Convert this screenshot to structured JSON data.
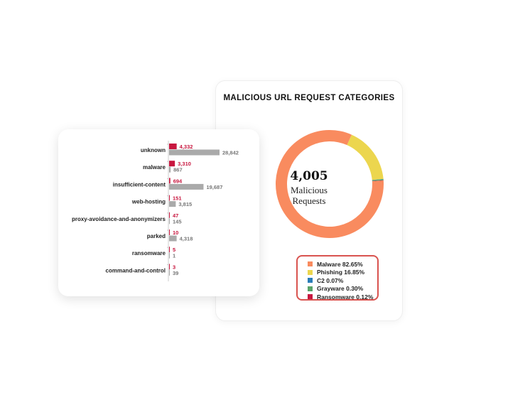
{
  "chart_data": [
    {
      "type": "bar",
      "orientation": "horizontal",
      "categories": [
        "unknown",
        "malware",
        "insufficient-content",
        "web-hosting",
        "proxy-avoidance-and-anonymizers",
        "parked",
        "ransomware",
        "command-and-control"
      ],
      "series": [
        {
          "color": "#c8173f",
          "values": [
            4332,
            3310,
            694,
            151,
            47,
            10,
            5,
            3
          ],
          "labels": [
            "4,332",
            "3,310",
            "694",
            "151",
            "47",
            "10",
            "5",
            "3"
          ]
        },
        {
          "color": "#aaaaaa",
          "values": [
            28842,
            867,
            19687,
            3815,
            145,
            4318,
            1,
            39
          ],
          "labels": [
            "28,842",
            "867",
            "19,687",
            "3,815",
            "145",
            "4,318",
            "1",
            "39"
          ]
        }
      ]
    },
    {
      "type": "pie",
      "donut": true,
      "title": "MALICIOUS URL REQUEST CATEGORIES",
      "center_value": "4,005",
      "center_label": "Malicious\nRequests",
      "slices": [
        {
          "name": "Malware",
          "value": 82.65,
          "label": "Malware 82.65%",
          "color": "#f98b5f"
        },
        {
          "name": "Phishing",
          "value": 16.85,
          "label": "Phishing 16.85%",
          "color": "#ecd64e"
        },
        {
          "name": "C2",
          "value": 0.07,
          "label": "C2 0.07%",
          "color": "#2a7db8"
        },
        {
          "name": "Grayware",
          "value": 0.3,
          "label": "Grayware 0.30%",
          "color": "#5aa469"
        },
        {
          "name": "Ransomware",
          "value": 0.12,
          "label": "Ransomware 0.12%",
          "color": "#c8173f"
        }
      ],
      "legend_position": "bottom"
    }
  ]
}
